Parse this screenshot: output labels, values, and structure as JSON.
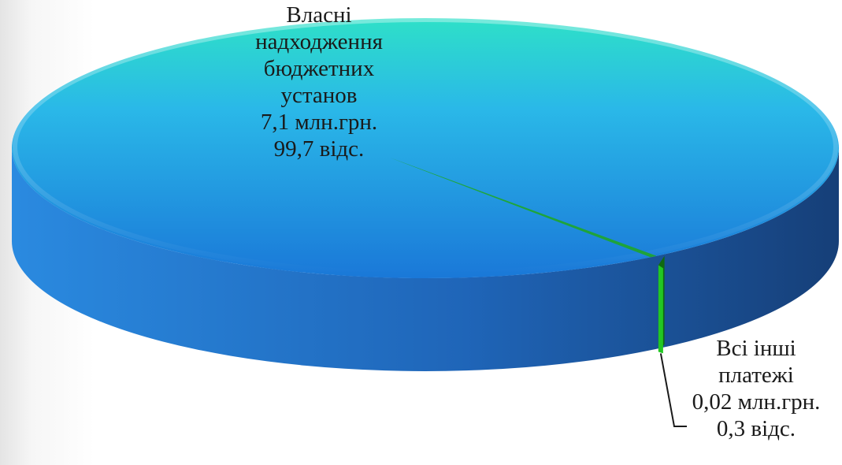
{
  "chart_data": {
    "type": "pie",
    "style": "3d-exploded-sliver",
    "slices": [
      {
        "name_lines": [
          "Власні",
          "надходження",
          "бюджетних",
          "установ"
        ],
        "value_text": "7,1 млн.грн.",
        "percent_text": "99,7 відс.",
        "value": 7.1,
        "percent": 99.7,
        "color": "#1f8fd8"
      },
      {
        "name_lines": [
          "Всі інші",
          "платежі"
        ],
        "value_text": "0,02 млн.грн.",
        "percent_text": "0,3 відс.",
        "value": 0.02,
        "percent": 0.3,
        "color": "#1fa81f"
      }
    ],
    "value_unit": "млн.грн.",
    "percent_unit": "відс.",
    "legend": "none",
    "labels": "outside-with-leader"
  },
  "colors": {
    "top_light": "#2ee0c8",
    "top_mid": "#2ab8e8",
    "top_dark": "#1a78d8",
    "side_light": "#2a8ae0",
    "side_dark": "#163f78",
    "slice_green": "#22c722",
    "slice_green_dark": "#0f6a10",
    "leader_line": "#1a1a1a"
  }
}
